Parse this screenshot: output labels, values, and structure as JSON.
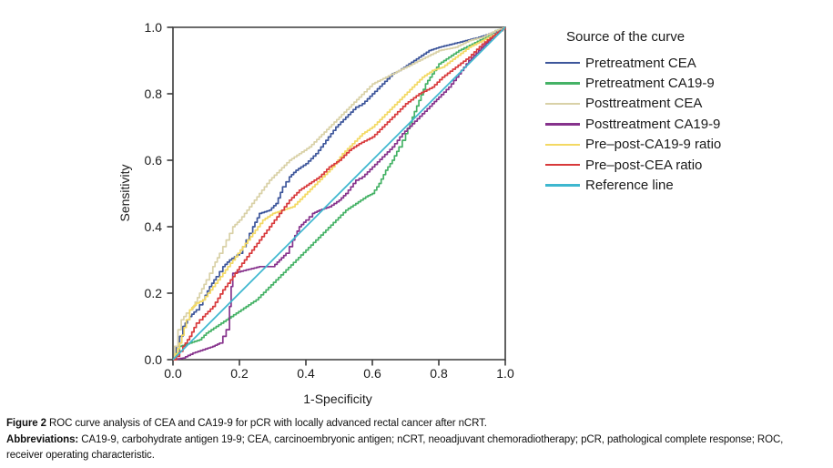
{
  "figure": {
    "caption_label": "Figure 2",
    "caption_text": "ROC curve analysis of CEA and CA19-9 for pCR with locally advanced rectal cancer after nCRT.",
    "abbrev_label": "Abbreviations:",
    "abbrev_line1": "CA19-9, carbohydrate antigen 19-9; CEA, carcinoembryonic antigen; nCRT, neoadjuvant chemoradiotherapy; pCR, pathological complete response; ROC,",
    "abbrev_line2": "receiver operating characteristic."
  },
  "colors": {
    "axis": "#3a3a3a",
    "text": "#1a1a1a",
    "background": "#ffffff"
  },
  "chart_data": {
    "type": "line",
    "subtype": "roc-curves",
    "title": "",
    "xlabel": "1-Specificity",
    "ylabel": "Sensitivity",
    "xlim": [
      0,
      1
    ],
    "ylim": [
      0,
      1
    ],
    "x_ticks": [
      "0.0",
      "0.2",
      "0.4",
      "0.6",
      "0.8",
      "1.0"
    ],
    "y_ticks": [
      "0.0",
      "0.2",
      "0.4",
      "0.6",
      "0.8",
      "1.0"
    ],
    "grid": false,
    "legend_title": "Source of the curve",
    "legend_position": "right",
    "series": [
      {
        "name": "Pretreatment CEA",
        "color": "#3d569b",
        "points": [
          [
            0,
            0
          ],
          [
            0.01,
            0.04
          ],
          [
            0.02,
            0.07
          ],
          [
            0.03,
            0.1
          ],
          [
            0.05,
            0.13
          ],
          [
            0.07,
            0.15
          ],
          [
            0.09,
            0.18
          ],
          [
            0.11,
            0.22
          ],
          [
            0.13,
            0.25
          ],
          [
            0.15,
            0.28
          ],
          [
            0.17,
            0.3
          ],
          [
            0.2,
            0.32
          ],
          [
            0.22,
            0.36
          ],
          [
            0.24,
            0.4
          ],
          [
            0.26,
            0.44
          ],
          [
            0.29,
            0.45
          ],
          [
            0.31,
            0.47
          ],
          [
            0.33,
            0.52
          ],
          [
            0.35,
            0.55
          ],
          [
            0.37,
            0.57
          ],
          [
            0.4,
            0.59
          ],
          [
            0.43,
            0.62
          ],
          [
            0.46,
            0.66
          ],
          [
            0.49,
            0.7
          ],
          [
            0.52,
            0.73
          ],
          [
            0.55,
            0.76
          ],
          [
            0.57,
            0.77
          ],
          [
            0.6,
            0.8
          ],
          [
            0.63,
            0.83
          ],
          [
            0.66,
            0.86
          ],
          [
            0.68,
            0.87
          ],
          [
            0.71,
            0.89
          ],
          [
            0.74,
            0.91
          ],
          [
            0.77,
            0.93
          ],
          [
            0.8,
            0.94
          ],
          [
            0.84,
            0.95
          ],
          [
            0.88,
            0.96
          ],
          [
            0.92,
            0.97
          ],
          [
            0.95,
            0.98
          ],
          [
            0.98,
            0.99
          ],
          [
            1,
            1
          ]
        ]
      },
      {
        "name": "Pretreatment CA19-9",
        "color": "#45b266",
        "points": [
          [
            0,
            0
          ],
          [
            0.01,
            0.02
          ],
          [
            0.02,
            0.04
          ],
          [
            0.05,
            0.05
          ],
          [
            0.08,
            0.06
          ],
          [
            0.1,
            0.08
          ],
          [
            0.13,
            0.1
          ],
          [
            0.16,
            0.12
          ],
          [
            0.19,
            0.14
          ],
          [
            0.22,
            0.16
          ],
          [
            0.25,
            0.18
          ],
          [
            0.28,
            0.21
          ],
          [
            0.31,
            0.24
          ],
          [
            0.34,
            0.27
          ],
          [
            0.37,
            0.3
          ],
          [
            0.4,
            0.33
          ],
          [
            0.43,
            0.36
          ],
          [
            0.46,
            0.39
          ],
          [
            0.49,
            0.42
          ],
          [
            0.52,
            0.45
          ],
          [
            0.55,
            0.47
          ],
          [
            0.58,
            0.49
          ],
          [
            0.6,
            0.5
          ],
          [
            0.62,
            0.53
          ],
          [
            0.64,
            0.57
          ],
          [
            0.66,
            0.6
          ],
          [
            0.68,
            0.64
          ],
          [
            0.7,
            0.68
          ],
          [
            0.72,
            0.73
          ],
          [
            0.74,
            0.78
          ],
          [
            0.76,
            0.83
          ],
          [
            0.78,
            0.86
          ],
          [
            0.8,
            0.89
          ],
          [
            0.83,
            0.91
          ],
          [
            0.86,
            0.93
          ],
          [
            0.9,
            0.95
          ],
          [
            0.94,
            0.97
          ],
          [
            0.97,
            0.99
          ],
          [
            1,
            1
          ]
        ]
      },
      {
        "name": "Posttreatment CEA",
        "color": "#d9d1a7",
        "points": [
          [
            0,
            0
          ],
          [
            0.005,
            0.04
          ],
          [
            0.015,
            0.09
          ],
          [
            0.025,
            0.12
          ],
          [
            0.04,
            0.14
          ],
          [
            0.06,
            0.16
          ],
          [
            0.08,
            0.2
          ],
          [
            0.1,
            0.24
          ],
          [
            0.12,
            0.28
          ],
          [
            0.14,
            0.32
          ],
          [
            0.16,
            0.36
          ],
          [
            0.18,
            0.4
          ],
          [
            0.2,
            0.42
          ],
          [
            0.23,
            0.46
          ],
          [
            0.26,
            0.5
          ],
          [
            0.29,
            0.54
          ],
          [
            0.32,
            0.57
          ],
          [
            0.35,
            0.6
          ],
          [
            0.38,
            0.62
          ],
          [
            0.41,
            0.64
          ],
          [
            0.44,
            0.67
          ],
          [
            0.47,
            0.7
          ],
          [
            0.5,
            0.73
          ],
          [
            0.53,
            0.76
          ],
          [
            0.56,
            0.79
          ],
          [
            0.6,
            0.83
          ],
          [
            0.64,
            0.85
          ],
          [
            0.68,
            0.87
          ],
          [
            0.72,
            0.89
          ],
          [
            0.76,
            0.91
          ],
          [
            0.8,
            0.93
          ],
          [
            0.85,
            0.94
          ],
          [
            0.89,
            0.96
          ],
          [
            0.93,
            0.97
          ],
          [
            0.97,
            0.99
          ],
          [
            1,
            1
          ]
        ]
      },
      {
        "name": "Posttreatment CA19-9",
        "color": "#86328c",
        "points": [
          [
            0,
            0
          ],
          [
            0.03,
            0.005
          ],
          [
            0.06,
            0.02
          ],
          [
            0.09,
            0.03
          ],
          [
            0.12,
            0.04
          ],
          [
            0.14,
            0.05
          ],
          [
            0.16,
            0.09
          ],
          [
            0.17,
            0.16
          ],
          [
            0.175,
            0.22
          ],
          [
            0.18,
            0.26
          ],
          [
            0.22,
            0.27
          ],
          [
            0.26,
            0.28
          ],
          [
            0.3,
            0.28
          ],
          [
            0.32,
            0.3
          ],
          [
            0.34,
            0.32
          ],
          [
            0.36,
            0.36
          ],
          [
            0.38,
            0.4
          ],
          [
            0.4,
            0.42
          ],
          [
            0.42,
            0.44
          ],
          [
            0.44,
            0.45
          ],
          [
            0.47,
            0.46
          ],
          [
            0.5,
            0.48
          ],
          [
            0.52,
            0.5
          ],
          [
            0.55,
            0.54
          ],
          [
            0.57,
            0.55
          ],
          [
            0.6,
            0.58
          ],
          [
            0.63,
            0.61
          ],
          [
            0.66,
            0.64
          ],
          [
            0.69,
            0.68
          ],
          [
            0.72,
            0.71
          ],
          [
            0.75,
            0.74
          ],
          [
            0.78,
            0.77
          ],
          [
            0.8,
            0.79
          ],
          [
            0.83,
            0.82
          ],
          [
            0.86,
            0.86
          ],
          [
            0.89,
            0.9
          ],
          [
            0.92,
            0.93
          ],
          [
            0.95,
            0.96
          ],
          [
            0.97,
            0.98
          ],
          [
            1,
            1
          ]
        ]
      },
      {
        "name": "Pre–post-CA19-9 ratio",
        "color": "#f3d963",
        "points": [
          [
            0,
            0
          ],
          [
            0.02,
            0.05
          ],
          [
            0.04,
            0.12
          ],
          [
            0.05,
            0.15
          ],
          [
            0.07,
            0.17
          ],
          [
            0.09,
            0.18
          ],
          [
            0.12,
            0.22
          ],
          [
            0.15,
            0.26
          ],
          [
            0.18,
            0.3
          ],
          [
            0.21,
            0.34
          ],
          [
            0.24,
            0.38
          ],
          [
            0.27,
            0.42
          ],
          [
            0.3,
            0.44
          ],
          [
            0.33,
            0.45
          ],
          [
            0.36,
            0.46
          ],
          [
            0.39,
            0.49
          ],
          [
            0.42,
            0.52
          ],
          [
            0.45,
            0.55
          ],
          [
            0.48,
            0.58
          ],
          [
            0.51,
            0.62
          ],
          [
            0.54,
            0.65
          ],
          [
            0.57,
            0.68
          ],
          [
            0.6,
            0.7
          ],
          [
            0.63,
            0.73
          ],
          [
            0.66,
            0.76
          ],
          [
            0.69,
            0.79
          ],
          [
            0.72,
            0.82
          ],
          [
            0.75,
            0.85
          ],
          [
            0.78,
            0.87
          ],
          [
            0.81,
            0.88
          ],
          [
            0.85,
            0.91
          ],
          [
            0.89,
            0.94
          ],
          [
            0.93,
            0.96
          ],
          [
            0.97,
            0.98
          ],
          [
            1,
            1
          ]
        ]
      },
      {
        "name": "Pre–post-CEA ratio",
        "color": "#d8393b",
        "points": [
          [
            0,
            0
          ],
          [
            0.01,
            0.01
          ],
          [
            0.03,
            0.04
          ],
          [
            0.05,
            0.07
          ],
          [
            0.07,
            0.11
          ],
          [
            0.09,
            0.13
          ],
          [
            0.12,
            0.16
          ],
          [
            0.15,
            0.21
          ],
          [
            0.18,
            0.25
          ],
          [
            0.2,
            0.28
          ],
          [
            0.23,
            0.32
          ],
          [
            0.26,
            0.36
          ],
          [
            0.29,
            0.4
          ],
          [
            0.32,
            0.44
          ],
          [
            0.35,
            0.48
          ],
          [
            0.38,
            0.51
          ],
          [
            0.41,
            0.53
          ],
          [
            0.44,
            0.55
          ],
          [
            0.47,
            0.58
          ],
          [
            0.5,
            0.6
          ],
          [
            0.53,
            0.63
          ],
          [
            0.56,
            0.65
          ],
          [
            0.6,
            0.67
          ],
          [
            0.63,
            0.7
          ],
          [
            0.66,
            0.73
          ],
          [
            0.7,
            0.77
          ],
          [
            0.74,
            0.8
          ],
          [
            0.78,
            0.82
          ],
          [
            0.81,
            0.85
          ],
          [
            0.85,
            0.88
          ],
          [
            0.89,
            0.91
          ],
          [
            0.93,
            0.95
          ],
          [
            0.97,
            0.98
          ],
          [
            1,
            1
          ]
        ]
      },
      {
        "name": "Reference line",
        "color": "#3eb7cf",
        "reference": true,
        "points": [
          [
            0,
            0
          ],
          [
            1,
            1
          ]
        ]
      }
    ]
  }
}
